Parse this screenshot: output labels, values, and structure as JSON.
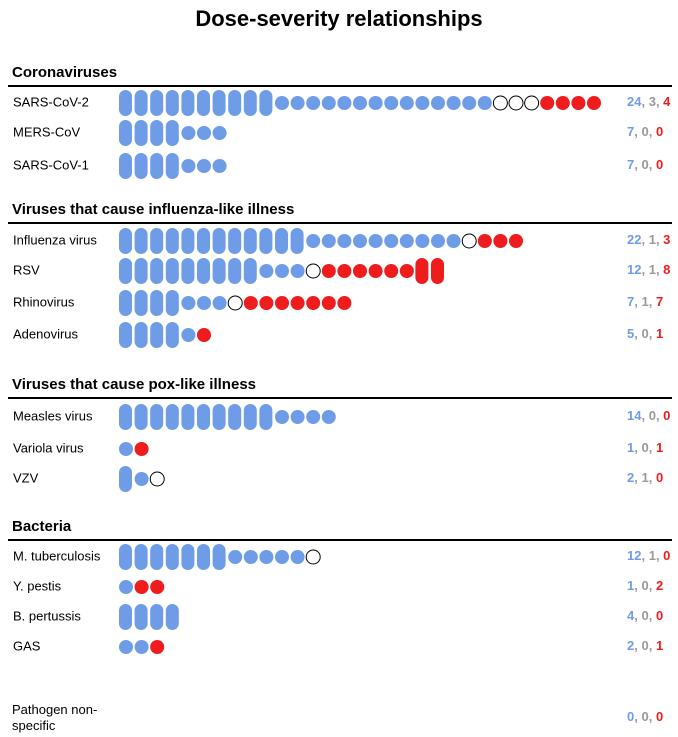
{
  "chart_data": {
    "type": "dot",
    "title": "Dose-severity relationships",
    "colors": {
      "blue": "#6f9ce6",
      "white": "#ffffff",
      "red": "#ee1c1c",
      "white_count": "#999999"
    },
    "separator": ", ",
    "groups": [
      {
        "name": "Coronaviruses",
        "rows": [
          {
            "label": "SARS-CoV-2",
            "blue": 24,
            "white": 3,
            "red": 4,
            "blue_tall": 10,
            "red_tall": 0
          },
          {
            "label": "MERS-CoV",
            "blue": 7,
            "white": 0,
            "red": 0,
            "blue_tall": 4,
            "red_tall": 0
          },
          {
            "label": "SARS-CoV-1",
            "blue": 7,
            "white": 0,
            "red": 0,
            "blue_tall": 4,
            "red_tall": 0
          }
        ]
      },
      {
        "name": "Viruses that cause influenza-like illness",
        "rows": [
          {
            "label": "Influenza virus",
            "blue": 22,
            "white": 1,
            "red": 3,
            "blue_tall": 12,
            "red_tall": 0
          },
          {
            "label": "RSV",
            "blue": 12,
            "white": 1,
            "red": 8,
            "blue_tall": 9,
            "red_tall": 2
          },
          {
            "label": "Rhinovirus",
            "blue": 7,
            "white": 1,
            "red": 7,
            "blue_tall": 4,
            "red_tall": 0
          },
          {
            "label": "Adenovirus",
            "blue": 5,
            "white": 0,
            "red": 1,
            "blue_tall": 4,
            "red_tall": 0
          }
        ]
      },
      {
        "name": "Viruses that cause pox-like illness",
        "rows": [
          {
            "label": "Measles virus",
            "blue": 14,
            "white": 0,
            "red": 0,
            "blue_tall": 10,
            "red_tall": 0
          },
          {
            "label": "Variola virus",
            "blue": 1,
            "white": 0,
            "red": 1,
            "blue_tall": 0,
            "red_tall": 0
          },
          {
            "label": "VZV",
            "blue": 2,
            "white": 1,
            "red": 0,
            "blue_tall": 1,
            "red_tall": 0
          }
        ]
      },
      {
        "name": "Bacteria",
        "rows": [
          {
            "label": "M. tuberculosis",
            "blue": 12,
            "white": 1,
            "red": 0,
            "blue_tall": 7,
            "red_tall": 0
          },
          {
            "label": "Y. pestis",
            "blue": 1,
            "white": 0,
            "red": 2,
            "blue_tall": 0,
            "red_tall": 0
          },
          {
            "label": "B. pertussis",
            "blue": 4,
            "white": 0,
            "red": 0,
            "blue_tall": 4,
            "red_tall": 0
          },
          {
            "label": "GAS",
            "blue": 2,
            "white": 0,
            "red": 1,
            "blue_tall": 0,
            "red_tall": 0
          }
        ]
      },
      {
        "name": null,
        "rows": [
          {
            "label": "Pathogen non-specific",
            "blue": 0,
            "white": 0,
            "red": 0,
            "blue_tall": 0,
            "red_tall": 0
          }
        ]
      }
    ]
  }
}
